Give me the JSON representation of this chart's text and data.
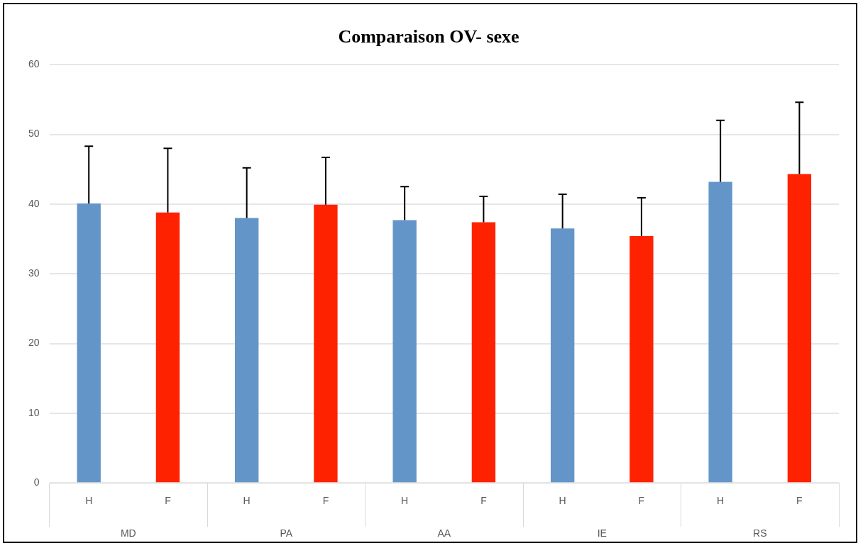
{
  "chart_data": {
    "type": "bar",
    "title": "Comparaison OV- sexe",
    "categories": [
      "MD",
      "PA",
      "AA",
      "IE",
      "RS"
    ],
    "series": [
      {
        "name": "H",
        "color": "#6495c8",
        "values": [
          40.1,
          38.0,
          37.7,
          36.5,
          43.2
        ],
        "errors": [
          [
            40.1,
            48.3
          ],
          [
            38.0,
            45.2
          ],
          [
            37.7,
            42.5
          ],
          [
            36.5,
            41.4
          ],
          [
            43.2,
            52.0
          ]
        ]
      },
      {
        "name": "F",
        "color": "#ff2200",
        "values": [
          38.8,
          39.9,
          37.4,
          35.4,
          44.3
        ],
        "errors": [
          [
            38.8,
            48.0
          ],
          [
            39.9,
            46.7
          ],
          [
            37.4,
            41.1
          ],
          [
            35.4,
            40.9
          ],
          [
            44.3,
            54.6
          ]
        ]
      }
    ],
    "ylim": [
      0,
      60
    ],
    "yticks": [
      0,
      10,
      20,
      30,
      40,
      50,
      60
    ],
    "grid": "y",
    "legend": false
  }
}
